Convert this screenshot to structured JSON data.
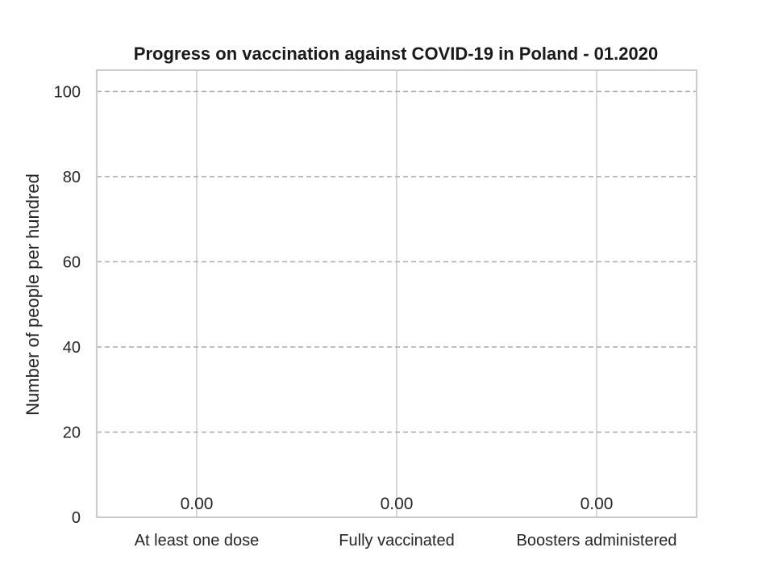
{
  "chart_data": {
    "type": "bar",
    "title": "Progress on vaccination against COVID-19 in Poland - 01.2020",
    "xlabel": "",
    "ylabel": "Number of people per hundred",
    "categories": [
      "At least one dose",
      "Fully vaccinated",
      "Boosters administered"
    ],
    "values": [
      0,
      0,
      0
    ],
    "data_labels": [
      "0.00",
      "0.00",
      "0.00"
    ],
    "ylim": [
      0,
      105
    ],
    "yticks": [
      0,
      20,
      40,
      60,
      80,
      100
    ],
    "grid": {
      "horizontal": "dashed",
      "vertical": "solid"
    },
    "colors": {
      "grid_horizontal": "#aaaaaa",
      "grid_vertical": "#cccccc",
      "frame": "#cccccc",
      "text": "#262626"
    }
  }
}
